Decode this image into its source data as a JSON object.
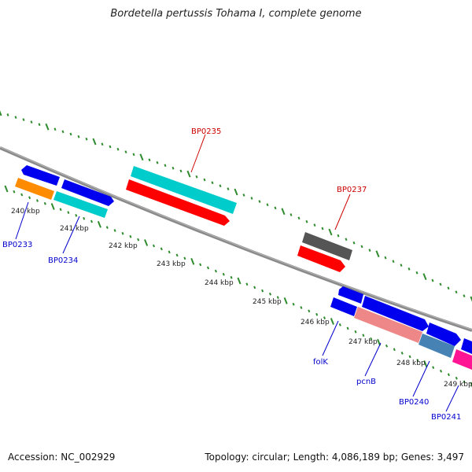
{
  "title": "Bordetella pertussis Tohama I, complete genome",
  "footer": {
    "accession": "Accession: NC_002929",
    "summary": "Topology: circular; Length: 4,086,189 bp; Genes: 3,497"
  },
  "colors": {
    "backbone": "#808080",
    "tick": "#2e8b2e",
    "tick_label": "#222222",
    "gene_label_blue": "#0000cc",
    "gene_label_red": "#cc0000"
  },
  "ruler": {
    "labels": [
      "240 kbp",
      "241 kbp",
      "242 kbp",
      "243 kbp",
      "244 kbp",
      "245 kbp",
      "246 kbp",
      "247 kbp",
      "248 kbp",
      "249 kbp"
    ]
  },
  "gene_labels": {
    "bp0233": "BP0233",
    "bp0234": "BP0234",
    "bp0235": "BP0235",
    "bp0237": "BP0237",
    "folk": "folK",
    "pcnb": "pcnB",
    "bp0240": "BP0240",
    "bp0241": "BP0241"
  },
  "features": [
    {
      "name": "blue",
      "color": "#0000ee"
    },
    {
      "name": "orange",
      "color": "#ff8c00"
    },
    {
      "name": "cyan",
      "color": "#00cccc"
    },
    {
      "name": "red",
      "color": "#ff0000"
    },
    {
      "name": "dark-gray",
      "color": "#555555"
    },
    {
      "name": "pink",
      "color": "#ee8888"
    },
    {
      "name": "steel-blue",
      "color": "#4682b4"
    },
    {
      "name": "magenta",
      "color": "#ff1493"
    }
  ]
}
